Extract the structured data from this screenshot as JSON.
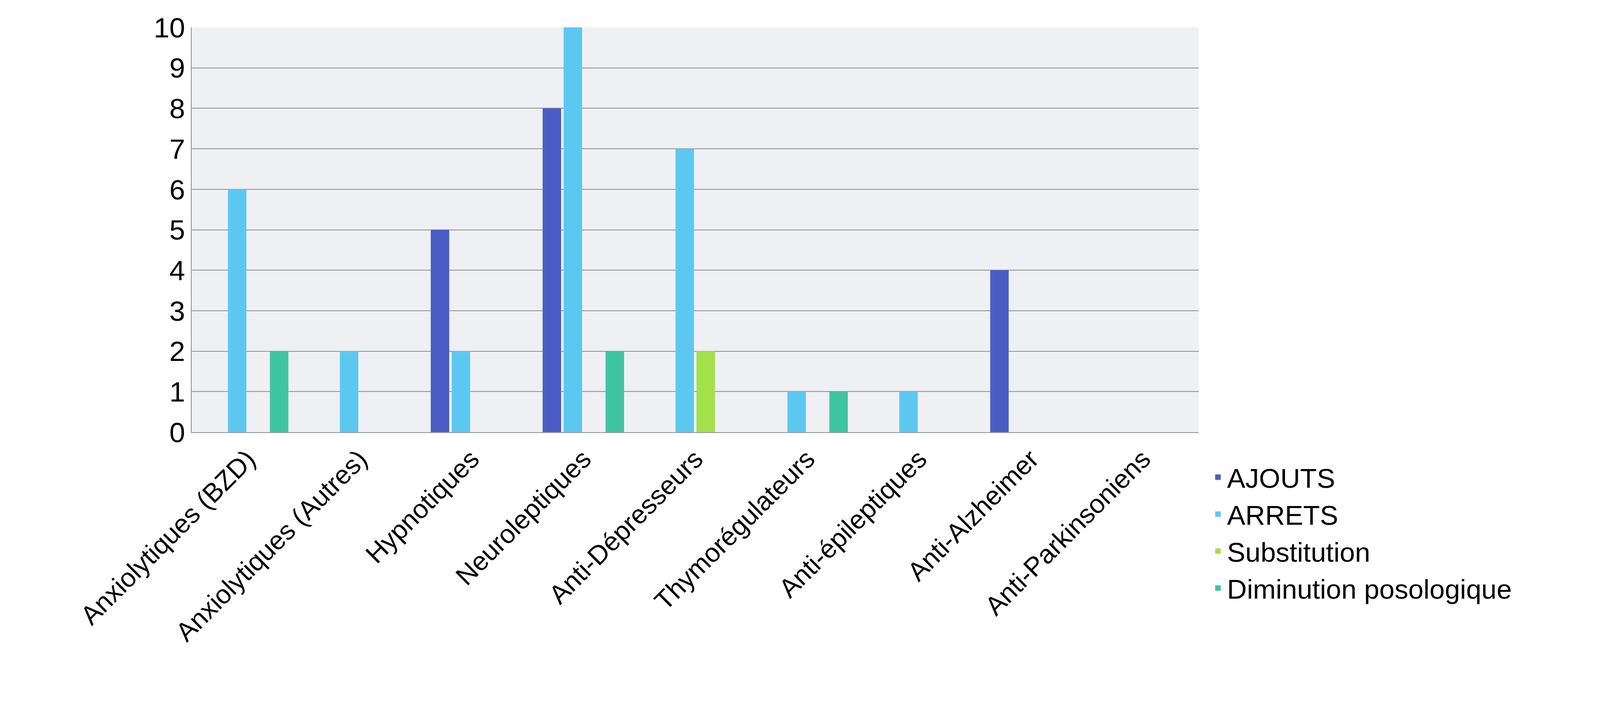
{
  "chart_data": {
    "type": "bar",
    "categories": [
      "Anxiolytiques (BZD)",
      "Anxiolytiques (Autres)",
      "Hypnotiques",
      "Neuroleptiques",
      "Anti-Dépresseurs",
      "Thymorégulateurs",
      "Anti-épileptiques",
      "Anti-Alzheimer",
      "Anti-Parkinsoniens"
    ],
    "series": [
      {
        "name": "AJOUTS",
        "color": "#4a5cc4",
        "values": [
          0,
          0,
          5,
          8,
          0,
          0,
          0,
          4,
          0
        ]
      },
      {
        "name": "ARRETS",
        "color": "#5cc8f2",
        "values": [
          6,
          2,
          2,
          10,
          7,
          1,
          1,
          0,
          0
        ]
      },
      {
        "name": "Substitution",
        "color": "#a4e04a",
        "values": [
          0,
          0,
          0,
          0,
          2,
          0,
          0,
          0,
          0
        ]
      },
      {
        "name": "Diminution posologique",
        "color": "#3fc4a2",
        "values": [
          2,
          0,
          0,
          2,
          0,
          1,
          0,
          0,
          0
        ]
      }
    ],
    "ylim": [
      0,
      10
    ],
    "yticks": [
      0,
      1,
      2,
      3,
      4,
      5,
      6,
      7,
      8,
      9,
      10
    ],
    "grid": true,
    "legend": "bottom right"
  }
}
